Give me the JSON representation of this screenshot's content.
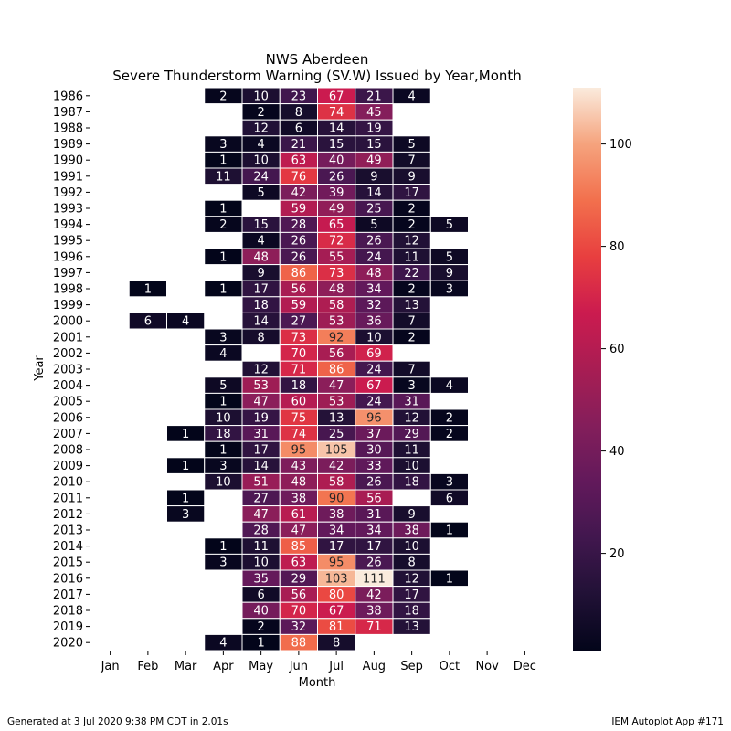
{
  "chart_data": {
    "type": "heatmap",
    "title": "NWS Aberdeen",
    "subtitle": "Severe Thunderstorm Warning (SV.W) Issued by Year,Month",
    "xlabel": "Month",
    "ylabel": "Year",
    "x_categories": [
      "Jan",
      "Feb",
      "Mar",
      "Apr",
      "May",
      "Jun",
      "Jul",
      "Aug",
      "Sep",
      "Oct",
      "Nov",
      "Dec"
    ],
    "y_categories": [
      "1986",
      "1987",
      "1988",
      "1989",
      "1990",
      "1991",
      "1992",
      "1993",
      "1994",
      "1995",
      "1996",
      "1997",
      "1998",
      "1999",
      "2000",
      "2001",
      "2002",
      "2003",
      "2004",
      "2005",
      "2006",
      "2007",
      "2008",
      "2009",
      "2010",
      "2011",
      "2012",
      "2013",
      "2014",
      "2015",
      "2016",
      "2017",
      "2018",
      "2019",
      "2020"
    ],
    "values": [
      [
        null,
        null,
        null,
        2,
        10,
        23,
        67,
        21,
        4,
        null,
        null,
        null
      ],
      [
        null,
        null,
        null,
        null,
        2,
        8,
        74,
        45,
        null,
        null,
        null,
        null
      ],
      [
        null,
        null,
        null,
        null,
        12,
        6,
        14,
        19,
        null,
        null,
        null,
        null
      ],
      [
        null,
        null,
        null,
        3,
        4,
        21,
        15,
        15,
        5,
        null,
        null,
        null
      ],
      [
        null,
        null,
        null,
        1,
        10,
        63,
        40,
        49,
        7,
        null,
        null,
        null
      ],
      [
        null,
        null,
        null,
        11,
        24,
        76,
        26,
        9,
        9,
        null,
        null,
        null
      ],
      [
        null,
        null,
        null,
        null,
        5,
        42,
        39,
        14,
        17,
        null,
        null,
        null
      ],
      [
        null,
        null,
        null,
        1,
        null,
        59,
        49,
        25,
        2,
        null,
        null,
        null
      ],
      [
        null,
        null,
        null,
        2,
        15,
        28,
        65,
        5,
        2,
        5,
        null,
        null
      ],
      [
        null,
        null,
        null,
        null,
        4,
        26,
        72,
        26,
        12,
        null,
        null,
        null
      ],
      [
        null,
        null,
        null,
        1,
        48,
        26,
        55,
        24,
        11,
        5,
        null,
        null
      ],
      [
        null,
        null,
        null,
        null,
        9,
        86,
        73,
        48,
        22,
        9,
        null,
        null
      ],
      [
        null,
        1,
        null,
        1,
        17,
        56,
        48,
        34,
        2,
        3,
        null,
        null
      ],
      [
        null,
        null,
        null,
        null,
        18,
        59,
        58,
        32,
        13,
        null,
        null,
        null
      ],
      [
        null,
        6,
        4,
        null,
        14,
        27,
        53,
        36,
        7,
        null,
        null,
        null
      ],
      [
        null,
        null,
        null,
        3,
        8,
        73,
        92,
        10,
        2,
        null,
        null,
        null
      ],
      [
        null,
        null,
        null,
        4,
        null,
        70,
        56,
        69,
        null,
        null,
        null,
        null
      ],
      [
        null,
        null,
        null,
        null,
        12,
        71,
        86,
        24,
        7,
        null,
        null,
        null
      ],
      [
        null,
        null,
        null,
        5,
        53,
        18,
        47,
        67,
        3,
        4,
        null,
        null
      ],
      [
        null,
        null,
        null,
        1,
        47,
        60,
        53,
        24,
        31,
        null,
        null,
        null
      ],
      [
        null,
        null,
        null,
        10,
        19,
        75,
        13,
        96,
        12,
        2,
        null,
        null
      ],
      [
        null,
        null,
        1,
        18,
        31,
        74,
        25,
        37,
        29,
        2,
        null,
        null
      ],
      [
        null,
        null,
        null,
        1,
        17,
        95,
        105,
        30,
        11,
        null,
        null,
        null
      ],
      [
        null,
        null,
        1,
        3,
        14,
        43,
        42,
        33,
        10,
        null,
        null,
        null
      ],
      [
        null,
        null,
        null,
        10,
        51,
        48,
        58,
        26,
        18,
        3,
        null,
        null
      ],
      [
        null,
        null,
        1,
        null,
        27,
        38,
        90,
        56,
        null,
        6,
        null,
        null
      ],
      [
        null,
        null,
        3,
        null,
        47,
        61,
        38,
        31,
        9,
        null,
        null,
        null
      ],
      [
        null,
        null,
        null,
        null,
        28,
        47,
        34,
        34,
        38,
        1,
        null,
        null
      ],
      [
        null,
        null,
        null,
        1,
        11,
        85,
        17,
        17,
        10,
        null,
        null,
        null
      ],
      [
        null,
        null,
        null,
        3,
        10,
        63,
        95,
        26,
        8,
        null,
        null,
        null
      ],
      [
        null,
        null,
        null,
        null,
        35,
        29,
        103,
        111,
        12,
        1,
        null,
        null
      ],
      [
        null,
        null,
        null,
        null,
        6,
        56,
        80,
        42,
        17,
        null,
        null,
        null
      ],
      [
        null,
        null,
        null,
        null,
        40,
        70,
        67,
        38,
        18,
        null,
        null,
        null
      ],
      [
        null,
        null,
        null,
        null,
        2,
        32,
        81,
        71,
        13,
        null,
        null,
        null
      ],
      [
        null,
        null,
        null,
        4,
        1,
        88,
        8,
        null,
        null,
        null,
        null,
        null
      ]
    ],
    "colormap": "rocket",
    "colorbar_range": [
      1,
      111
    ],
    "colorbar_ticks": [
      20,
      40,
      60,
      80,
      100
    ],
    "grid": false,
    "legend_placement": "right"
  },
  "footer": {
    "left": "Generated at 3 Jul 2020 9:38 PM CDT in 2.01s",
    "right": "IEM Autoplot App #171"
  }
}
